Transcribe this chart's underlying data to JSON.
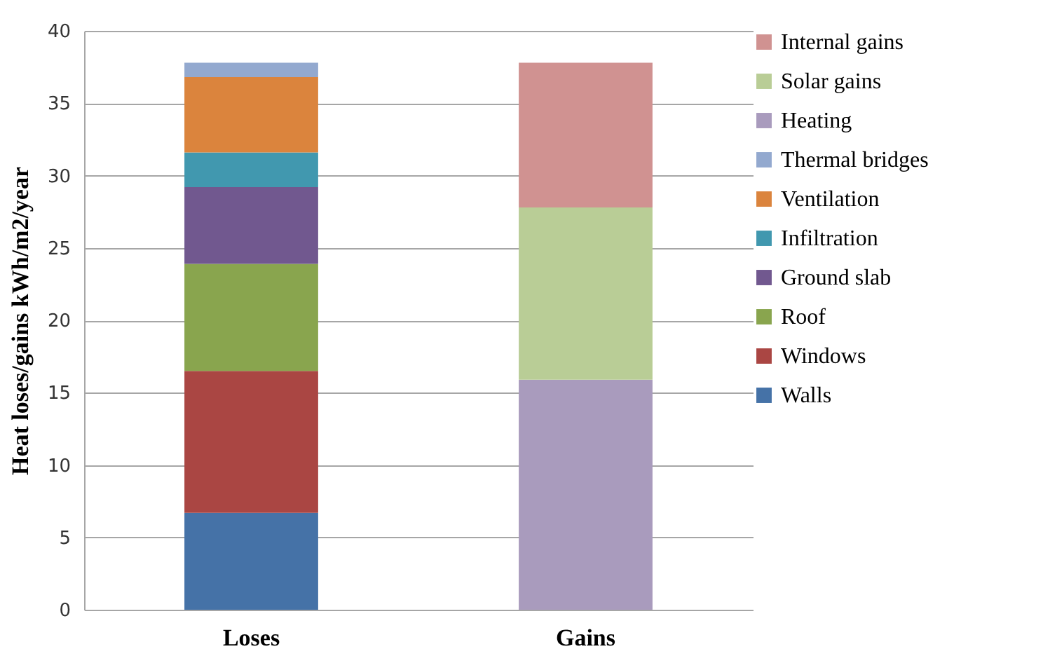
{
  "chart_data": {
    "type": "bar",
    "stacked": true,
    "ylabel": "Heat loses/gains kWh/m2/year",
    "categories": [
      "Loses",
      "Gains"
    ],
    "ylim": [
      0,
      40
    ],
    "yticks": [
      0,
      5,
      10,
      15,
      20,
      25,
      30,
      35,
      40
    ],
    "grid": "y",
    "legend": "right",
    "series": [
      {
        "name": "Walls",
        "color": "#4572a7",
        "values": [
          6.7,
          null
        ]
      },
      {
        "name": "Windows",
        "color": "#aa4643",
        "values": [
          9.8,
          null
        ]
      },
      {
        "name": "Roof",
        "color": "#89a54e",
        "values": [
          7.4,
          null
        ]
      },
      {
        "name": "Ground slab",
        "color": "#71588f",
        "values": [
          5.3,
          null
        ]
      },
      {
        "name": "Infiltration",
        "color": "#4198af",
        "values": [
          2.4,
          null
        ]
      },
      {
        "name": "Ventilation",
        "color": "#db843d",
        "values": [
          5.2,
          null
        ]
      },
      {
        "name": "Thermal bridges",
        "color": "#93a9cf",
        "values": [
          1.0,
          null
        ]
      },
      {
        "name": "Heating",
        "color": "#a99bbd",
        "values": [
          null,
          15.9
        ]
      },
      {
        "name": "Solar gains",
        "color": "#b9cd96",
        "values": [
          null,
          11.9
        ]
      },
      {
        "name": "Internal gains",
        "color": "#d09291",
        "values": [
          null,
          10.0
        ]
      }
    ]
  }
}
